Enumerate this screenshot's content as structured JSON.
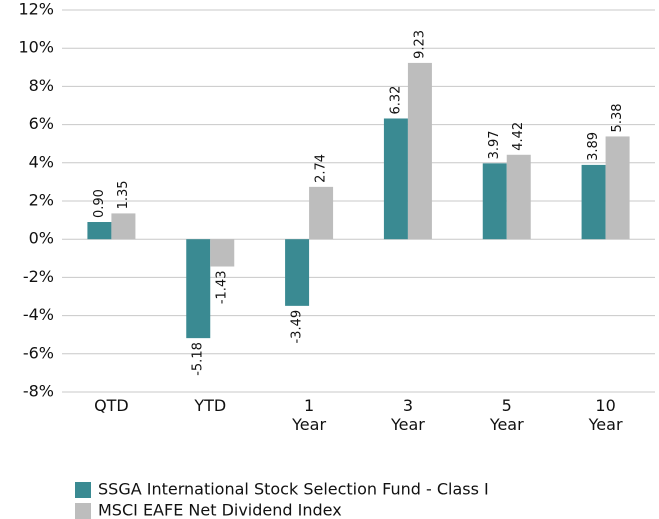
{
  "chart_data": {
    "type": "bar",
    "categories": [
      "QTD",
      "YTD",
      "1 Year",
      "3 Year",
      "5 Year",
      "10 Year"
    ],
    "series": [
      {
        "name": "SSGA International Stock Selection Fund - Class I",
        "color": "#3a8a92",
        "values": [
          0.9,
          -5.18,
          -3.49,
          6.32,
          3.97,
          3.89
        ],
        "value_labels": [
          "0.90",
          "-5.18",
          "-3.49",
          "6.32",
          "3.97",
          "3.89"
        ]
      },
      {
        "name": "MSCI EAFE Net Dividend Index",
        "color": "#bdbdbd",
        "values": [
          1.35,
          -1.43,
          2.74,
          9.23,
          4.42,
          5.38
        ],
        "value_labels": [
          "1.35",
          "-1.43",
          "2.74",
          "9.23",
          "4.42",
          "5.38"
        ]
      }
    ],
    "ylim": [
      -8,
      12
    ],
    "yticks": [
      {
        "value": -8,
        "label": "-8%"
      },
      {
        "value": -6,
        "label": "-6%"
      },
      {
        "value": -4,
        "label": "-4%"
      },
      {
        "value": -2,
        "label": "-2%"
      },
      {
        "value": 0,
        "label": "0%"
      },
      {
        "value": 2,
        "label": "2%"
      },
      {
        "value": 4,
        "label": "4%"
      },
      {
        "value": 6,
        "label": "6%"
      },
      {
        "value": 8,
        "label": "8%"
      },
      {
        "value": 10,
        "label": "10%"
      },
      {
        "value": 12,
        "label": "12%"
      }
    ],
    "grid": true
  }
}
